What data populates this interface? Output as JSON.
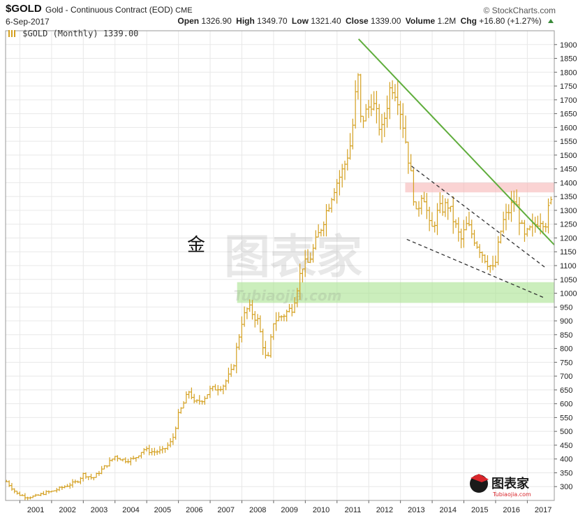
{
  "header": {
    "symbol": "$GOLD",
    "description": "Gold - Continuous Contract (EOD)",
    "exchange": "CME",
    "brand": "© StockCharts.com",
    "date": "6-Sep-2017",
    "open_label": "Open",
    "open": "1326.90",
    "high_label": "High",
    "high": "1349.70",
    "low_label": "Low",
    "low": "1321.40",
    "close_label": "Close",
    "close": "1339.00",
    "volume_label": "Volume",
    "volume": "1.2M",
    "chg_label": "Chg",
    "chg": "+16.80 (+1.27%)"
  },
  "legend": {
    "label": "$GOLD (Monthly) 1339.00",
    "color": "#d4a020"
  },
  "annotation_cjk": "金",
  "watermark": {
    "text_cn": "图表家",
    "text_en": "Tubiaojia.com"
  },
  "logo": {
    "text_cn": "图表家",
    "text_en": "Tubiaojia.com"
  },
  "colors": {
    "bar": "#d4a020",
    "trend": "#5fad3c",
    "dashed": "#333333",
    "resistance": "#f6b6b6",
    "support": "#a9e38f",
    "grid": "#e8e8e8"
  },
  "chart_data": {
    "type": "ohlc",
    "title": "$GOLD (Monthly) 1339.00",
    "xlabel": "",
    "ylabel": "",
    "ylim": [
      250,
      1950
    ],
    "xlim": [
      2000.55,
      2017.85
    ],
    "y_ticks": [
      300,
      350,
      400,
      450,
      500,
      550,
      600,
      650,
      700,
      750,
      800,
      850,
      900,
      950,
      1000,
      1050,
      1100,
      1150,
      1200,
      1250,
      1300,
      1350,
      1400,
      1450,
      1500,
      1550,
      1600,
      1650,
      1700,
      1750,
      1800,
      1850,
      1900
    ],
    "x_ticks": [
      2001,
      2002,
      2003,
      2004,
      2005,
      2006,
      2007,
      2008,
      2009,
      2010,
      2011,
      2012,
      2013,
      2014,
      2015,
      2016,
      2017
    ],
    "grid": true,
    "anchors": [
      [
        2000.58,
        318
      ],
      [
        2000.9,
        275
      ],
      [
        2001.2,
        262
      ],
      [
        2001.5,
        265
      ],
      [
        2001.8,
        278
      ],
      [
        2002.0,
        282
      ],
      [
        2002.4,
        300
      ],
      [
        2002.8,
        318
      ],
      [
        2003.0,
        345
      ],
      [
        2003.3,
        330
      ],
      [
        2003.7,
        375
      ],
      [
        2004.0,
        410
      ],
      [
        2004.3,
        395
      ],
      [
        2004.6,
        400
      ],
      [
        2004.9,
        435
      ],
      [
        2005.2,
        425
      ],
      [
        2005.5,
        430
      ],
      [
        2005.8,
        465
      ],
      [
        2006.0,
        560
      ],
      [
        2006.35,
        650
      ],
      [
        2006.5,
        600
      ],
      [
        2006.8,
        620
      ],
      [
        2007.0,
        650
      ],
      [
        2007.4,
        665
      ],
      [
        2007.7,
        720
      ],
      [
        2008.0,
        900
      ],
      [
        2008.2,
        950
      ],
      [
        2008.5,
        900
      ],
      [
        2008.8,
        740
      ],
      [
        2009.0,
        900
      ],
      [
        2009.3,
        920
      ],
      [
        2009.6,
        950
      ],
      [
        2009.9,
        1100
      ],
      [
        2010.1,
        1110
      ],
      [
        2010.5,
        1240
      ],
      [
        2010.9,
        1380
      ],
      [
        2011.2,
        1450
      ],
      [
        2011.45,
        1550
      ],
      [
        2011.65,
        1800
      ],
      [
        2011.75,
        1620
      ],
      [
        2011.9,
        1650
      ],
      [
        2012.1,
        1700
      ],
      [
        2012.4,
        1580
      ],
      [
        2012.7,
        1760
      ],
      [
        2012.9,
        1720
      ],
      [
        2013.1,
        1600
      ],
      [
        2013.3,
        1450
      ],
      [
        2013.5,
        1280
      ],
      [
        2013.7,
        1380
      ],
      [
        2013.95,
        1220
      ],
      [
        2014.2,
        1300
      ],
      [
        2014.5,
        1320
      ],
      [
        2014.9,
        1190
      ],
      [
        2015.1,
        1250
      ],
      [
        2015.4,
        1180
      ],
      [
        2015.7,
        1120
      ],
      [
        2015.95,
        1080
      ],
      [
        2016.2,
        1250
      ],
      [
        2016.6,
        1340
      ],
      [
        2016.9,
        1200
      ],
      [
        2017.1,
        1230
      ],
      [
        2017.4,
        1270
      ],
      [
        2017.6,
        1255
      ],
      [
        2017.72,
        1339
      ]
    ],
    "last_bar": {
      "open": 1326.9,
      "high": 1349.7,
      "low": 1321.4,
      "close": 1339.0
    },
    "trendlines": [
      {
        "style": "solid",
        "points": [
          [
            2011.68,
            1920
          ],
          [
            2017.85,
            1175
          ]
        ]
      },
      {
        "style": "dashed",
        "points": [
          [
            2013.35,
            1460
          ],
          [
            2017.6,
            1090
          ]
        ]
      },
      {
        "style": "dashed",
        "points": [
          [
            2013.2,
            1195
          ],
          [
            2017.5,
            985
          ]
        ]
      }
    ],
    "zones": [
      {
        "label": "",
        "x": [
          2013.15,
          2017.85
        ],
        "y": [
          1365,
          1400
        ],
        "color": "#f6b6b6"
      },
      {
        "label": "",
        "x": [
          2007.85,
          2017.85
        ],
        "y": [
          965,
          1040
        ],
        "color": "#a9e38f"
      }
    ]
  }
}
